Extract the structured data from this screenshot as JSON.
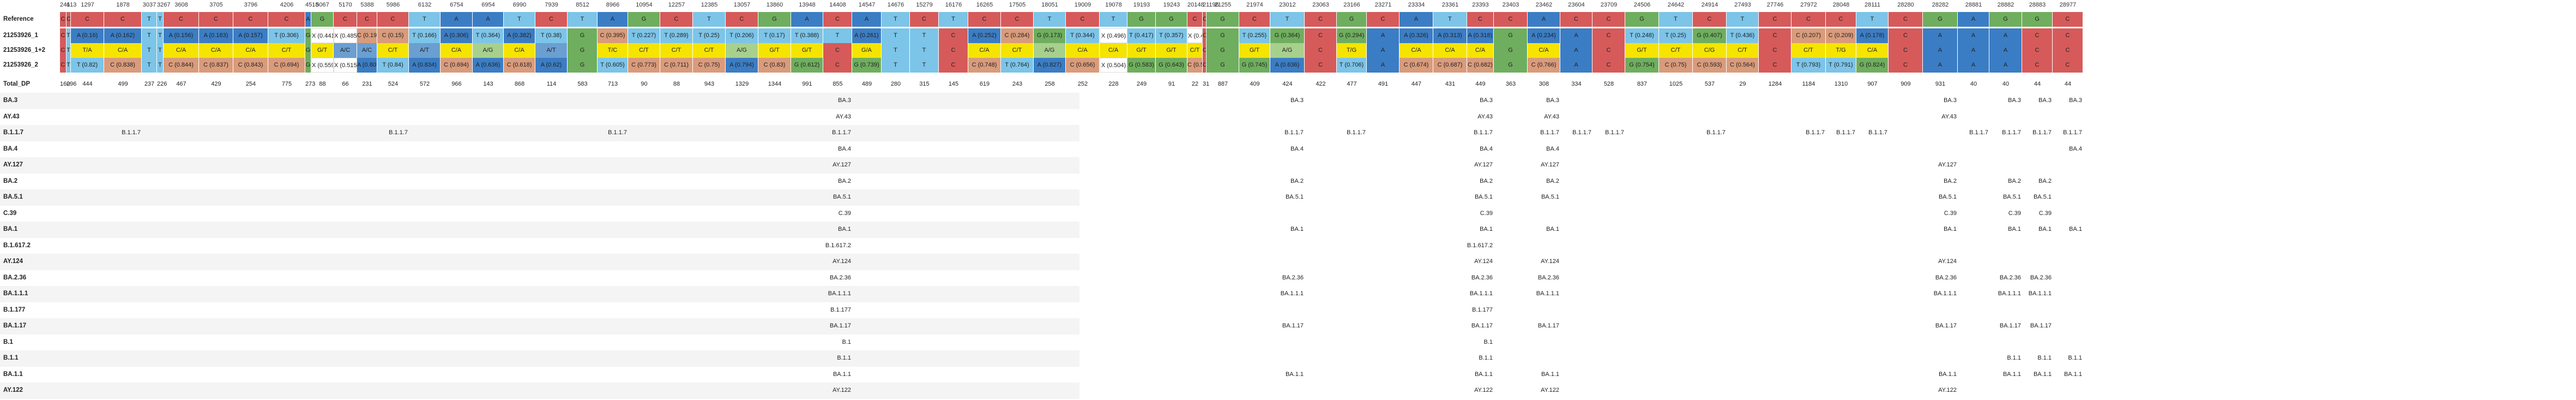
{
  "colors": {
    "A": "#3b7dc4",
    "C": "#d65a5a",
    "G": "#6fae5e",
    "T": "#7cc4e8",
    "ambig_yellow": "#f5e400",
    "ambig_orange": "#f3a25a",
    "ambig_tan": "#d99b7b",
    "ambig_green": "#86b86b",
    "ambig_blue": "#6b9fd1",
    "ambig_lightgreen": "#a8d08d"
  },
  "row_labels": {
    "reference": "Reference",
    "sample1": "21253926_1",
    "sample2": "21253926_1+2",
    "sample3": "21253926_2",
    "total_dp": "Total_DP"
  },
  "positions": [
    "241",
    "613",
    "1297",
    "1878",
    "3037",
    "3267",
    "3608",
    "3705",
    "3796",
    "4206",
    "4518",
    "5067",
    "5170",
    "5388",
    "5986",
    "6132",
    "6754",
    "6954",
    "6990",
    "7939",
    "8512",
    "8966",
    "10954",
    "12257",
    "12385",
    "13057",
    "13860",
    "13948",
    "14408",
    "14547",
    "14676",
    "15279",
    "16176",
    "16265",
    "17505",
    "18051",
    "19009",
    "19078",
    "19193",
    "19243",
    "20148",
    "21196",
    "21255",
    "21974",
    "23012",
    "23063",
    "23166",
    "23271",
    "23334",
    "23361",
    "23393",
    "23403",
    "23462",
    "23604",
    "23709",
    "24506",
    "24642",
    "24914",
    "27493",
    "27746",
    "27972",
    "28048",
    "28111",
    "28280",
    "28282",
    "28881",
    "28882",
    "28883",
    "28977"
  ],
  "reference_bases": [
    "C",
    "C",
    "C",
    "C",
    "T",
    "T",
    "C",
    "C",
    "C",
    "C",
    "A",
    "G",
    "C",
    "C",
    "C",
    "T",
    "A",
    "A",
    "T",
    "C",
    "T",
    "A",
    "G",
    "C",
    "T",
    "C",
    "G",
    "A",
    "C",
    "A",
    "T",
    "C",
    "T",
    "C",
    "C",
    "T",
    "C",
    "T",
    "G",
    "G",
    "C",
    "C",
    "G",
    "C",
    "T",
    "C",
    "G",
    "C",
    "A",
    "T",
    "C",
    "C",
    "A",
    "C",
    "C",
    "G",
    "T",
    "C",
    "T",
    "C",
    "C",
    "C",
    "T",
    "C",
    "G",
    "A",
    "G",
    "G",
    "C"
  ],
  "sample_rows": [
    [
      "C",
      "T",
      "A (0.16)",
      "A (0.162)",
      "T",
      "T",
      "A (0.156)",
      "A (0.183)",
      "A (0.157)",
      "T (0.306)",
      "G",
      "X (0.441)",
      "X (0.485)",
      "C (0.195)",
      "C (0.15)",
      "T (0.166)",
      "A (0.306)",
      "T (0.364)",
      "A (0.382)",
      "T (0.38)",
      "G",
      "C (0.395)",
      "T (0.227)",
      "T (0.289)",
      "T (0.25)",
      "T (0.206)",
      "T (0.17)",
      "T (0.388)",
      "T",
      "A (0.261)",
      "T",
      "T",
      "C",
      "A (0.252)",
      "C (0.284)",
      "G (0.173)",
      "T (0.344)",
      "X (0.496)",
      "T (0.417)",
      "T (0.357)",
      "X (0.44)",
      "C",
      "G",
      "T (0.255)",
      "G (0.364)",
      "C",
      "G (0.294)",
      "A",
      "A (0.326)",
      "A (0.313)",
      "A (0.318)",
      "G",
      "A (0.234)",
      "A",
      "C",
      "T (0.248)",
      "T (0.25)",
      "G (0.407)",
      "T (0.436)",
      "C",
      "C (0.207)",
      "C (0.209)",
      "A (0.178)",
      "C",
      "A",
      "A",
      "A",
      "C",
      "C"
    ],
    [
      "C",
      "T",
      "T/A",
      "C/A",
      "T",
      "T",
      "C/A",
      "C/A",
      "C/A",
      "C/T",
      "G",
      "G/T",
      "A/C",
      "A/C",
      "C/T",
      "A/T",
      "C/A",
      "A/G",
      "C/A",
      "A/T",
      "G",
      "T/C",
      "C/T",
      "C/T",
      "C/T",
      "A/G",
      "G/T",
      "G/T",
      "C",
      "G/A",
      "T",
      "T",
      "C",
      "C/A",
      "C/T",
      "A/G",
      "C/A",
      "C/A",
      "G/T",
      "G/T",
      "C/T",
      "C",
      "G",
      "G/T",
      "A/G",
      "C",
      "T/G",
      "A",
      "C/A",
      "C/A",
      "C/A",
      "G",
      "C/A",
      "A",
      "C",
      "G/T",
      "C/T",
      "C/G",
      "C/T",
      "C",
      "C/T",
      "T/G",
      "C/A",
      "C",
      "A",
      "A",
      "A",
      "C",
      "C"
    ],
    [
      "C",
      "T",
      "T (0.82)",
      "C (0.838)",
      "T",
      "T",
      "C (0.844)",
      "C (0.837)",
      "C (0.843)",
      "C (0.694)",
      "G",
      "X (0.559)",
      "X (0.515)",
      "A (0.805)",
      "T (0.84)",
      "A (0.834)",
      "C (0.694)",
      "A (0.636)",
      "C (0.618)",
      "A (0.62)",
      "G",
      "T (0.605)",
      "C (0.773)",
      "C (0.711)",
      "C (0.75)",
      "A (0.794)",
      "C (0.83)",
      "G (0.612)",
      "C",
      "G (0.739)",
      "T",
      "T",
      "C",
      "C (0.748)",
      "T (0.764)",
      "A (0.827)",
      "C (0.656)",
      "X (0.504)",
      "G (0.583)",
      "G (0.643)",
      "C (0.56)",
      "C",
      "G",
      "G (0.745)",
      "A (0.636)",
      "C",
      "T (0.706)",
      "A",
      "C (0.674)",
      "C (0.687)",
      "C (0.682)",
      "G",
      "C (0.766)",
      "A",
      "C",
      "G (0.754)",
      "C (0.75)",
      "C (0.593)",
      "C (0.564)",
      "C",
      "T (0.793)",
      "T (0.791)",
      "G (0.824)",
      "C",
      "A",
      "A",
      "A",
      "C",
      "C"
    ]
  ],
  "total_dp": [
    "160",
    "296",
    "444",
    "499",
    "237",
    "226",
    "467",
    "429",
    "254",
    "775",
    "273",
    "88",
    "66",
    "231",
    "524",
    "572",
    "966",
    "143",
    "868",
    "114",
    "583",
    "713",
    "90",
    "88",
    "943",
    "1329",
    "1344",
    "991",
    "855",
    "489",
    "280",
    "315",
    "145",
    "619",
    "243",
    "258",
    "252",
    "228",
    "249",
    "91",
    "22",
    "31",
    "887",
    "409",
    "424",
    "422",
    "477",
    "491",
    "447",
    "431",
    "449",
    "363",
    "308",
    "334",
    "528",
    "837",
    "1025",
    "537",
    "29",
    "1284",
    "1184",
    "1310",
    "907",
    "909",
    "931",
    "40",
    "40",
    "44",
    "44"
  ],
  "lineage_rows": [
    {
      "name": "BA.3",
      "entries": [
        {
          "col": 28,
          "text": "BA.3"
        },
        {
          "col": 44,
          "text": "BA.3"
        },
        {
          "col": 50,
          "text": "BA.3"
        },
        {
          "col": 52,
          "text": "BA.3"
        },
        {
          "col": 64,
          "text": "BA.3"
        },
        {
          "col": 66,
          "text": "BA.3"
        },
        {
          "col": 67,
          "text": "BA.3"
        },
        {
          "col": 68,
          "text": "BA.3"
        }
      ]
    },
    {
      "name": "AY.43",
      "entries": [
        {
          "col": 28,
          "text": "AY.43"
        },
        {
          "col": 50,
          "text": "AY.43"
        },
        {
          "col": 52,
          "text": "AY.43"
        },
        {
          "col": 64,
          "text": "AY.43"
        }
      ]
    },
    {
      "name": "B.1.1.7",
      "entries": [
        {
          "col": 3,
          "text": "B.1.1.7"
        },
        {
          "col": 14,
          "text": "B.1.1.7"
        },
        {
          "col": 21,
          "text": "B.1.1.7"
        },
        {
          "col": 28,
          "text": "B.1.1.7"
        },
        {
          "col": 44,
          "text": "B.1.1.7"
        },
        {
          "col": 46,
          "text": "B.1.1.7"
        },
        {
          "col": 50,
          "text": "B.1.1.7"
        },
        {
          "col": 52,
          "text": "B.1.1.7"
        },
        {
          "col": 53,
          "text": "B.1.1.7"
        },
        {
          "col": 54,
          "text": "B.1.1.7"
        },
        {
          "col": 57,
          "text": "B.1.1.7"
        },
        {
          "col": 60,
          "text": "B.1.1.7"
        },
        {
          "col": 61,
          "text": "B.1.1.7"
        },
        {
          "col": 62,
          "text": "B.1.1.7"
        },
        {
          "col": 65,
          "text": "B.1.1.7"
        },
        {
          "col": 66,
          "text": "B.1.1.7"
        },
        {
          "col": 67,
          "text": "B.1.1.7"
        },
        {
          "col": 68,
          "text": "B.1.1.7"
        }
      ]
    },
    {
      "name": "BA.4",
      "entries": [
        {
          "col": 28,
          "text": "BA.4"
        },
        {
          "col": 44,
          "text": "BA.4"
        },
        {
          "col": 50,
          "text": "BA.4"
        },
        {
          "col": 52,
          "text": "BA.4"
        },
        {
          "col": 68,
          "text": "BA.4"
        }
      ]
    },
    {
      "name": "AY.127",
      "entries": [
        {
          "col": 28,
          "text": "AY.127"
        },
        {
          "col": 50,
          "text": "AY.127"
        },
        {
          "col": 52,
          "text": "AY.127"
        },
        {
          "col": 64,
          "text": "AY.127"
        }
      ]
    },
    {
      "name": "BA.2",
      "entries": [
        {
          "col": 28,
          "text": "BA.2"
        },
        {
          "col": 44,
          "text": "BA.2"
        },
        {
          "col": 50,
          "text": "BA.2"
        },
        {
          "col": 52,
          "text": "BA.2"
        },
        {
          "col": 64,
          "text": "BA.2"
        },
        {
          "col": 66,
          "text": "BA.2"
        },
        {
          "col": 67,
          "text": "BA.2"
        }
      ]
    },
    {
      "name": "BA.5.1",
      "entries": [
        {
          "col": 28,
          "text": "BA.5.1"
        },
        {
          "col": 44,
          "text": "BA.5.1"
        },
        {
          "col": 50,
          "text": "BA.5.1"
        },
        {
          "col": 52,
          "text": "BA.5.1"
        },
        {
          "col": 64,
          "text": "BA.5.1"
        },
        {
          "col": 66,
          "text": "BA.5.1"
        },
        {
          "col": 67,
          "text": "BA.5.1"
        }
      ]
    },
    {
      "name": "C.39",
      "entries": [
        {
          "col": 28,
          "text": "C.39"
        },
        {
          "col": 50,
          "text": "C.39"
        },
        {
          "col": 64,
          "text": "C.39"
        },
        {
          "col": 66,
          "text": "C.39"
        },
        {
          "col": 67,
          "text": "C.39"
        }
      ]
    },
    {
      "name": "BA.1",
      "entries": [
        {
          "col": 28,
          "text": "BA.1"
        },
        {
          "col": 44,
          "text": "BA.1"
        },
        {
          "col": 50,
          "text": "BA.1"
        },
        {
          "col": 52,
          "text": "BA.1"
        },
        {
          "col": 64,
          "text": "BA.1"
        },
        {
          "col": 66,
          "text": "BA.1"
        },
        {
          "col": 67,
          "text": "BA.1"
        },
        {
          "col": 68,
          "text": "BA.1"
        }
      ]
    },
    {
      "name": "B.1.617.2",
      "entries": [
        {
          "col": 28,
          "text": "B.1.617.2"
        },
        {
          "col": 50,
          "text": "B.1.617.2"
        }
      ]
    },
    {
      "name": "AY.124",
      "entries": [
        {
          "col": 28,
          "text": "AY.124"
        },
        {
          "col": 50,
          "text": "AY.124"
        },
        {
          "col": 52,
          "text": "AY.124"
        },
        {
          "col": 64,
          "text": "AY.124"
        }
      ]
    },
    {
      "name": "BA.2.36",
      "entries": [
        {
          "col": 28,
          "text": "BA.2.36"
        },
        {
          "col": 44,
          "text": "BA.2.36"
        },
        {
          "col": 50,
          "text": "BA.2.36"
        },
        {
          "col": 52,
          "text": "BA.2.36"
        },
        {
          "col": 64,
          "text": "BA.2.36"
        },
        {
          "col": 66,
          "text": "BA.2.36"
        },
        {
          "col": 67,
          "text": "BA.2.36"
        }
      ]
    },
    {
      "name": "BA.1.1.1",
      "entries": [
        {
          "col": 28,
          "text": "BA.1.1.1"
        },
        {
          "col": 44,
          "text": "BA.1.1.1"
        },
        {
          "col": 50,
          "text": "BA.1.1.1"
        },
        {
          "col": 52,
          "text": "BA.1.1.1"
        },
        {
          "col": 64,
          "text": "BA.1.1.1"
        },
        {
          "col": 66,
          "text": "BA.1.1.1"
        },
        {
          "col": 67,
          "text": "BA.1.1.1"
        }
      ]
    },
    {
      "name": "B.1.177",
      "entries": [
        {
          "col": 28,
          "text": "B.1.177"
        },
        {
          "col": 50,
          "text": "B.1.177"
        }
      ]
    },
    {
      "name": "BA.1.17",
      "entries": [
        {
          "col": 28,
          "text": "BA.1.17"
        },
        {
          "col": 44,
          "text": "BA.1.17"
        },
        {
          "col": 50,
          "text": "BA.1.17"
        },
        {
          "col": 52,
          "text": "BA.1.17"
        },
        {
          "col": 64,
          "text": "BA.1.17"
        },
        {
          "col": 66,
          "text": "BA.1.17"
        },
        {
          "col": 67,
          "text": "BA.1.17"
        }
      ]
    },
    {
      "name": "B.1",
      "entries": [
        {
          "col": 28,
          "text": "B.1"
        },
        {
          "col": 50,
          "text": "B.1"
        }
      ]
    },
    {
      "name": "B.1.1",
      "entries": [
        {
          "col": 28,
          "text": "B.1.1"
        },
        {
          "col": 50,
          "text": "B.1.1"
        },
        {
          "col": 66,
          "text": "B.1.1"
        },
        {
          "col": 67,
          "text": "B.1.1"
        },
        {
          "col": 68,
          "text": "B.1.1"
        }
      ]
    },
    {
      "name": "BA.1.1",
      "entries": [
        {
          "col": 28,
          "text": "BA.1.1"
        },
        {
          "col": 44,
          "text": "BA.1.1"
        },
        {
          "col": 50,
          "text": "BA.1.1"
        },
        {
          "col": 52,
          "text": "BA.1.1"
        },
        {
          "col": 64,
          "text": "BA.1.1"
        },
        {
          "col": 66,
          "text": "BA.1.1"
        },
        {
          "col": 67,
          "text": "BA.1.1"
        },
        {
          "col": 68,
          "text": "BA.1.1"
        }
      ]
    },
    {
      "name": "AY.122",
      "entries": [
        {
          "col": 28,
          "text": "AY.122"
        },
        {
          "col": 50,
          "text": "AY.122"
        },
        {
          "col": 52,
          "text": "AY.122"
        },
        {
          "col": 64,
          "text": "AY.122"
        }
      ]
    }
  ]
}
